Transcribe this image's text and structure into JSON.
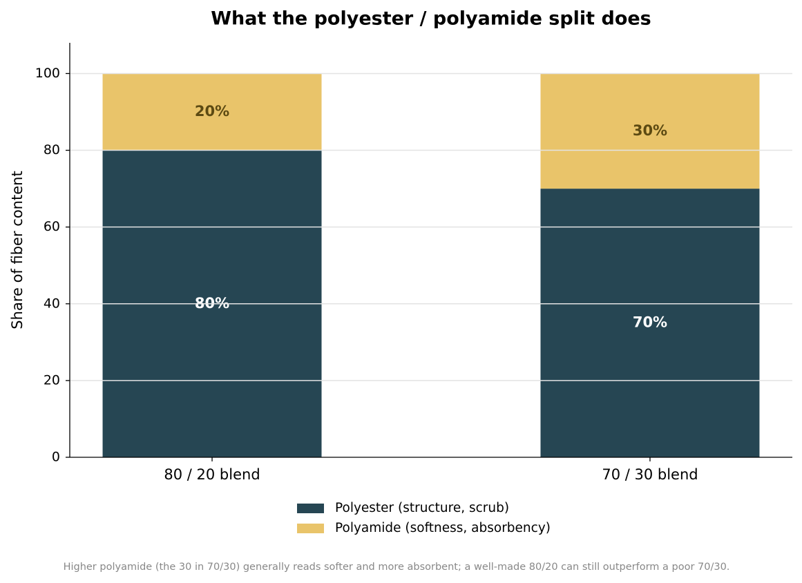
{
  "chart_data": {
    "type": "stacked_bar",
    "title": "What the polyester / polyamide split does",
    "y_label": "Share of fiber content",
    "categories": [
      "80 / 20 blend",
      "70 / 30 blend"
    ],
    "series": [
      {
        "name": "Polyester (structure, scrub)",
        "color": "#264653",
        "label_color": "#ffffff",
        "values": [
          80,
          70
        ],
        "value_labels": [
          "80%",
          "70%"
        ]
      },
      {
        "name": "Polyamide (softness, absorbency)",
        "color": "#e9c46a",
        "label_color": "#5c4a12",
        "values": [
          20,
          30
        ],
        "value_labels": [
          "20%",
          "30%"
        ]
      }
    ],
    "ylim": [
      0,
      108
    ],
    "yticks": [
      0,
      20,
      40,
      60,
      80,
      100
    ],
    "grid": true,
    "legend": "bottom",
    "footnote": "Higher polyamide (the 30 in 70/30) generally reads softer and more absorbent; a well-made 80/20 can still outperform a poor 70/30."
  }
}
